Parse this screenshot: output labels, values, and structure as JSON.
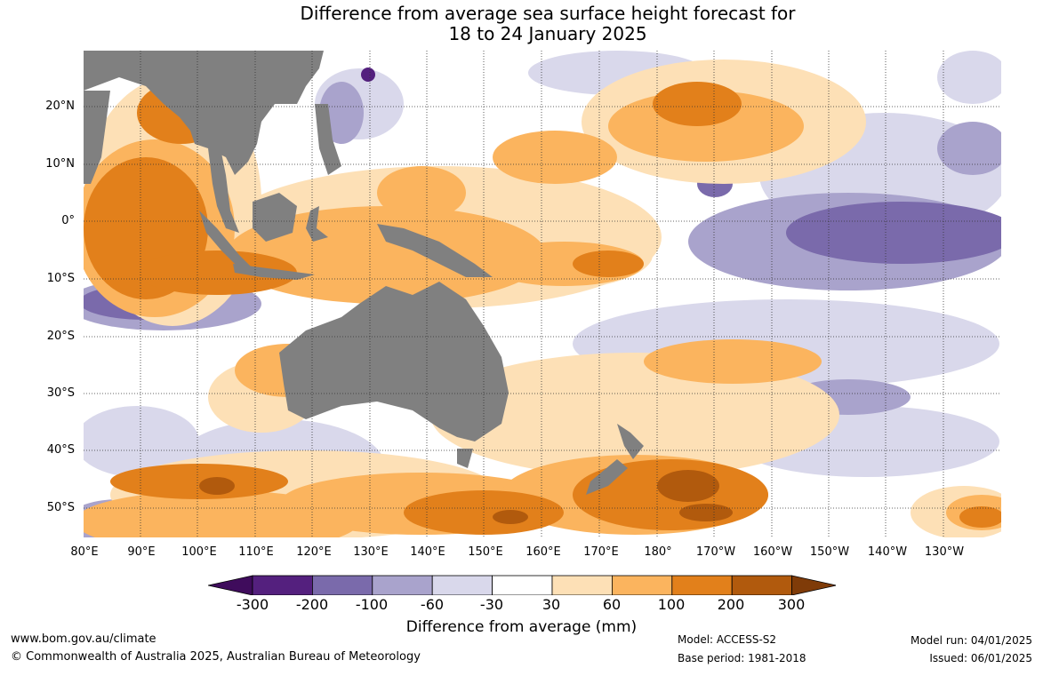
{
  "title": {
    "line1": "Difference from average sea surface height forecast for",
    "line2": "18 to 24 January 2025"
  },
  "map": {
    "lat_labels": [
      "20°N",
      "10°N",
      "0°",
      "10°S",
      "20°S",
      "30°S",
      "40°S",
      "50°S"
    ],
    "lon_labels": [
      "80°E",
      "90°E",
      "100°E",
      "110°E",
      "120°E",
      "130°E",
      "140°E",
      "150°E",
      "160°E",
      "170°E",
      "180°",
      "170°W",
      "160°W",
      "150°W",
      "140°W",
      "130°W"
    ],
    "land_color": "#808080",
    "ocean_color": "#ffffff"
  },
  "colorbar": {
    "title": "Difference from average (mm)",
    "ticks": [
      "-300",
      "-200",
      "-100",
      "-60",
      "-30",
      "30",
      "60",
      "100",
      "200",
      "300"
    ],
    "colors": [
      "#3f0c5c",
      "#54207e",
      "#7a6aab",
      "#a9a3cc",
      "#d9d8eb",
      "#ffffff",
      "#fde0b6",
      "#fbb45e",
      "#e2801b",
      "#b15a0d",
      "#7f3b08"
    ]
  },
  "footer": {
    "website": "www.bom.gov.au/climate",
    "copyright": "© Commonwealth of Australia 2025, Australian Bureau of Meteorology",
    "model": "Model: ACCESS-S2",
    "base_period": "Base period: 1981-2018",
    "model_run": "Model run: 04/01/2025",
    "issued": "Issued: 06/01/2025"
  }
}
